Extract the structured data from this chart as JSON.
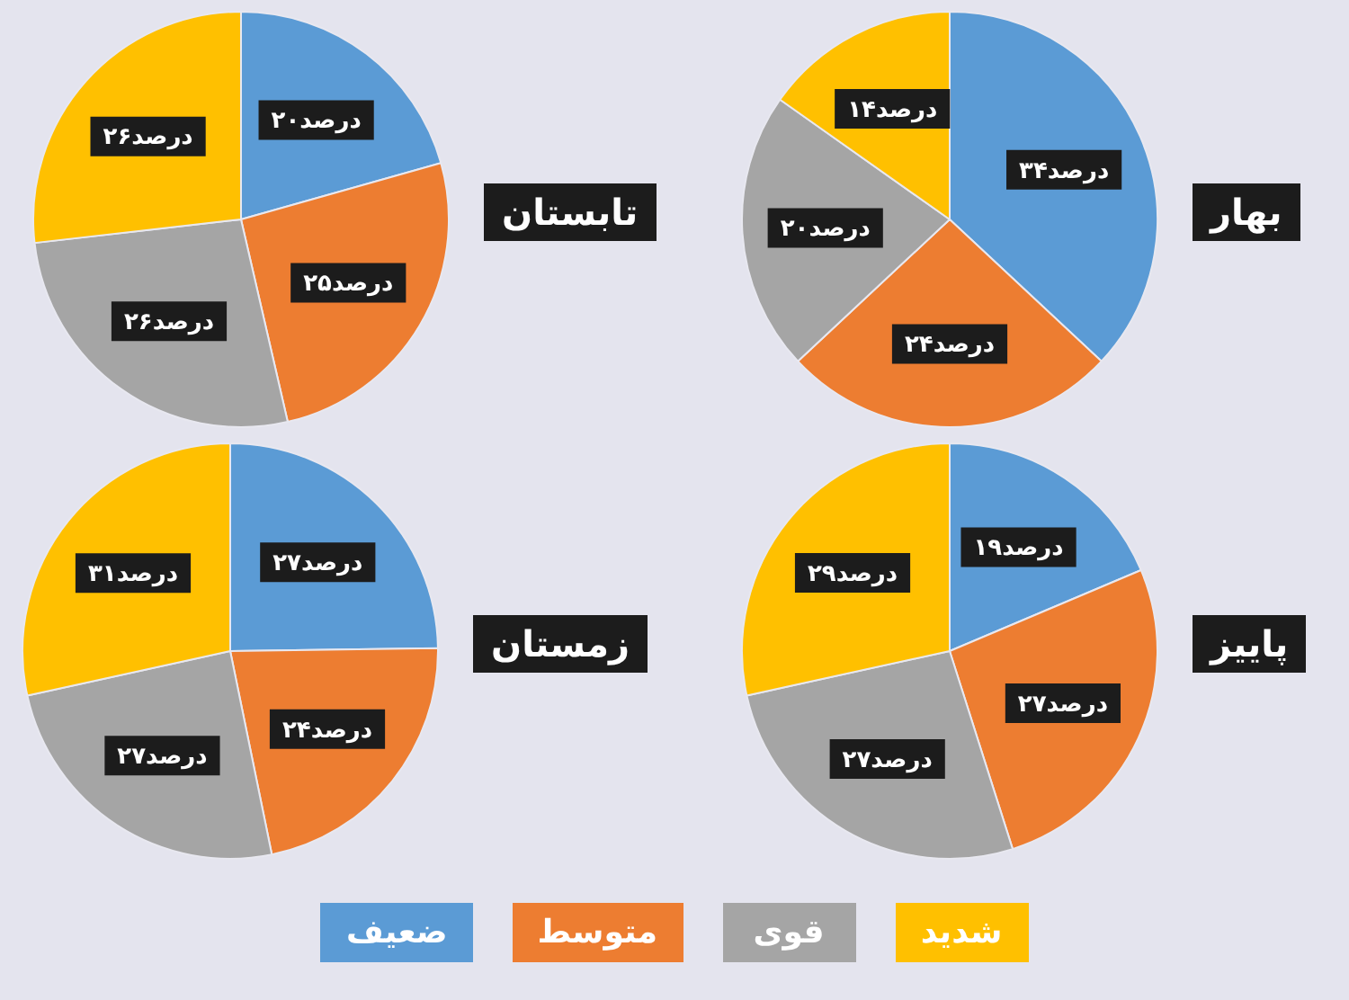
{
  "chart_data": [
    {
      "type": "pie",
      "title": "تابستان",
      "categories": [
        "ضعیف",
        "متوسط",
        "قوی",
        "شدید"
      ],
      "values": [
        20,
        25,
        26,
        26
      ],
      "colors": [
        "#5b9bd5",
        "#ed7d31",
        "#a5a5a5",
        "#ffc000"
      ],
      "value_labels": [
        "۲۰درصد",
        "۲۵درصد",
        "۲۶درصد",
        "۲۶درصد"
      ],
      "legend": "bottom"
    },
    {
      "type": "pie",
      "title": "بهار",
      "categories": [
        null,
        null,
        null,
        null
      ],
      "values": [
        34,
        24,
        20,
        14
      ],
      "colors": [
        "#5b9bd5",
        "#ed7d31",
        "#a5a5a5",
        "#ffc000"
      ],
      "value_labels": [
        "۳۴درصد",
        "۲۴درصد",
        "۲۰درصد",
        "۱۴درصد"
      ]
    },
    {
      "type": "pie",
      "title": "زمستان",
      "categories": [
        null,
        null,
        null,
        null
      ],
      "values": [
        27,
        24,
        27,
        31
      ],
      "colors": [
        "#5b9bd5",
        "#ed7d31",
        "#a5a5a5",
        "#ffc000"
      ],
      "value_labels": [
        "۲۷درصد",
        "۲۴درصد",
        "۲۷درصد",
        "۳۱درصد"
      ]
    },
    {
      "type": "pie",
      "title": "پاییز",
      "categories": [
        null,
        null,
        null,
        null
      ],
      "values": [
        19,
        27,
        27,
        29
      ],
      "colors": [
        "#5b9bd5",
        "#ed7d31",
        "#a5a5a5",
        "#ffc000"
      ],
      "value_labels": [
        "۱۹درصد",
        "۲۷درصد",
        "۲۷درصد",
        "۲۹درصد"
      ]
    }
  ]
}
